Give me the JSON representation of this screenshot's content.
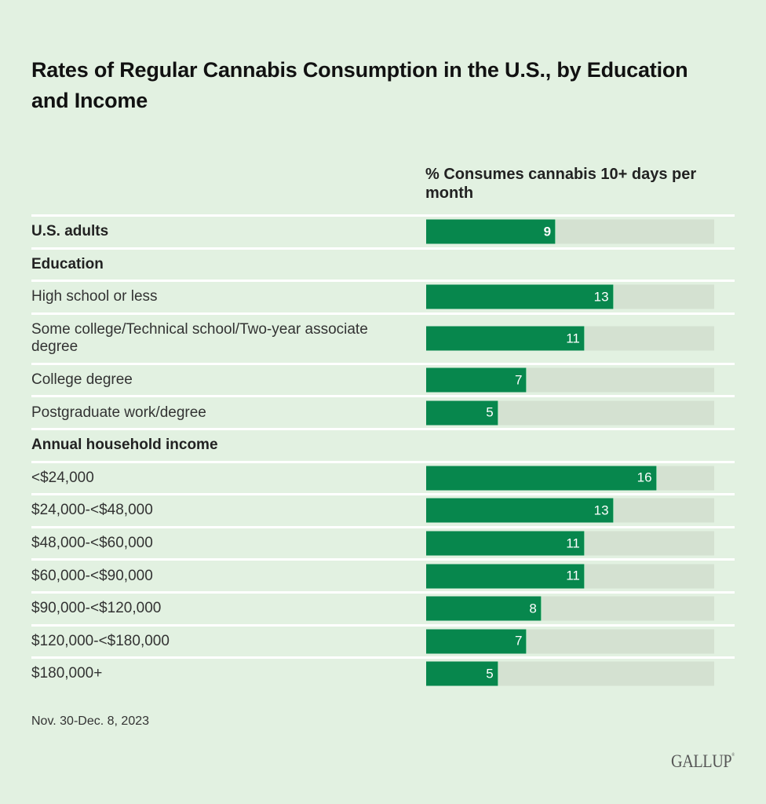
{
  "chart_data": {
    "type": "bar",
    "orientation": "horizontal",
    "title": "Rates of Regular Cannabis Consumption in the U.S., by Education and Income",
    "column_header": "% Consumes cannabis 10+ days per month",
    "xlim": [
      0,
      20
    ],
    "rows": [
      {
        "label": "U.S. adults",
        "value": 9,
        "bold": true,
        "kind": "data"
      },
      {
        "label": "Education",
        "value": null,
        "bold": true,
        "kind": "group"
      },
      {
        "label": "High school or less",
        "value": 13,
        "bold": false,
        "kind": "data"
      },
      {
        "label": "Some college/Technical school/Two-year associate degree",
        "value": 11,
        "bold": false,
        "kind": "data",
        "tall": true
      },
      {
        "label": "College degree",
        "value": 7,
        "bold": false,
        "kind": "data"
      },
      {
        "label": "Postgraduate work/degree",
        "value": 5,
        "bold": false,
        "kind": "data"
      },
      {
        "label": "Annual household income",
        "value": null,
        "bold": true,
        "kind": "group"
      },
      {
        "label": "<$24,000",
        "value": 16,
        "bold": false,
        "kind": "data"
      },
      {
        "label": "$24,000-<$48,000",
        "value": 13,
        "bold": false,
        "kind": "data"
      },
      {
        "label": "$48,000-<$60,000",
        "value": 11,
        "bold": false,
        "kind": "data"
      },
      {
        "label": "$60,000-<$90,000",
        "value": 11,
        "bold": false,
        "kind": "data"
      },
      {
        "label": "$90,000-<$120,000",
        "value": 8,
        "bold": false,
        "kind": "data"
      },
      {
        "label": "$120,000-<$180,000",
        "value": 7,
        "bold": false,
        "kind": "data"
      },
      {
        "label": "$180,000+",
        "value": 5,
        "bold": false,
        "kind": "data"
      }
    ],
    "colors": {
      "bar": "#07874d",
      "track": "#d4e1d1",
      "background": "#e2f1e1"
    }
  },
  "footnote": "Nov. 30-Dec. 8, 2023",
  "logo": "GALLUP"
}
